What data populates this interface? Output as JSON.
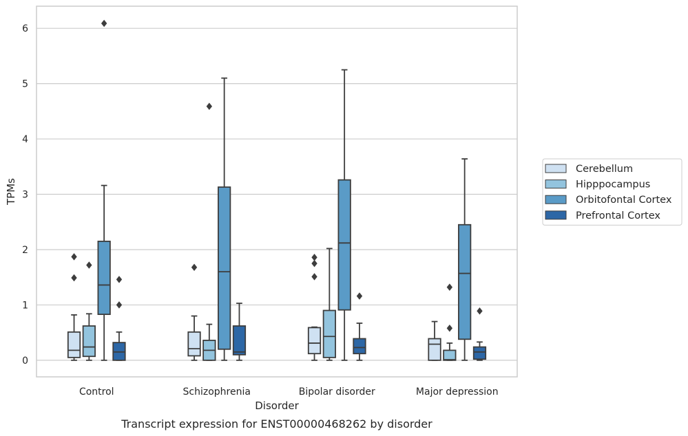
{
  "chart_data": {
    "type": "box",
    "caption": "Transcript expression for ENST00000468262 by disorder",
    "xlabel": "Disorder",
    "ylabel": "TPMs",
    "ylim": [
      -0.3,
      6.4
    ],
    "yticks": [
      0,
      1,
      2,
      3,
      4,
      5,
      6
    ],
    "grid": "horizontal",
    "legend_position": "right",
    "categories": [
      "Control",
      "Schizophrenia",
      "Bipolar disorder",
      "Major depression"
    ],
    "series": [
      {
        "name": "Cerebellum",
        "color": "#cfe1f2",
        "boxes": [
          {
            "whislo": 0,
            "q1": 0.05,
            "med": 0.18,
            "q3": 0.51,
            "whishi": 0.82,
            "fliers": [
              1.49,
              1.87
            ]
          },
          {
            "whislo": 0,
            "q1": 0.08,
            "med": 0.21,
            "q3": 0.51,
            "whishi": 0.8,
            "fliers": [
              1.68
            ]
          },
          {
            "whislo": 0,
            "q1": 0.12,
            "med": 0.31,
            "q3": 0.59,
            "whishi": 0.6,
            "fliers": [
              1.51,
              1.75,
              1.86
            ]
          },
          {
            "whislo": 0,
            "q1": 0.0,
            "med": 0.29,
            "q3": 0.39,
            "whishi": 0.7,
            "fliers": []
          }
        ]
      },
      {
        "name": "Hipppocampus",
        "color": "#93c4de",
        "boxes": [
          {
            "whislo": 0,
            "q1": 0.07,
            "med": 0.24,
            "q3": 0.62,
            "whishi": 0.84,
            "fliers": [
              1.72
            ]
          },
          {
            "whislo": 0,
            "q1": 0.0,
            "med": 0.18,
            "q3": 0.36,
            "whishi": 0.65,
            "fliers": [
              4.59
            ]
          },
          {
            "whislo": 0,
            "q1": 0.05,
            "med": 0.43,
            "q3": 0.9,
            "whishi": 2.02,
            "fliers": []
          },
          {
            "whislo": 0,
            "q1": 0.0,
            "med": 0.01,
            "q3": 0.18,
            "whishi": 0.31,
            "fliers": [
              0.58,
              1.32
            ]
          }
        ]
      },
      {
        "name": "Orbitofontal Cortex",
        "color": "#5a9bc7",
        "boxes": [
          {
            "whislo": 0,
            "q1": 0.83,
            "med": 1.36,
            "q3": 2.15,
            "whishi": 3.16,
            "fliers": [
              6.09
            ]
          },
          {
            "whislo": 0,
            "q1": 0.2,
            "med": 1.6,
            "q3": 3.13,
            "whishi": 5.1,
            "fliers": []
          },
          {
            "whislo": 0,
            "q1": 0.91,
            "med": 2.12,
            "q3": 3.26,
            "whishi": 5.25,
            "fliers": []
          },
          {
            "whislo": 0,
            "q1": 0.38,
            "med": 1.57,
            "q3": 2.45,
            "whishi": 3.64,
            "fliers": []
          }
        ]
      },
      {
        "name": "Prefrontal Cortex",
        "color": "#2d67a6",
        "boxes": [
          {
            "whislo": 0,
            "q1": 0.0,
            "med": 0.15,
            "q3": 0.32,
            "whishi": 0.51,
            "fliers": [
              1.0,
              1.46
            ]
          },
          {
            "whislo": 0,
            "q1": 0.1,
            "med": 0.15,
            "q3": 0.62,
            "whishi": 1.03,
            "fliers": []
          },
          {
            "whislo": 0,
            "q1": 0.12,
            "med": 0.23,
            "q3": 0.39,
            "whishi": 0.67,
            "fliers": [
              1.16
            ]
          },
          {
            "whislo": 0,
            "q1": 0.02,
            "med": 0.15,
            "q3": 0.24,
            "whishi": 0.33,
            "fliers": [
              0.89
            ]
          }
        ]
      }
    ]
  }
}
